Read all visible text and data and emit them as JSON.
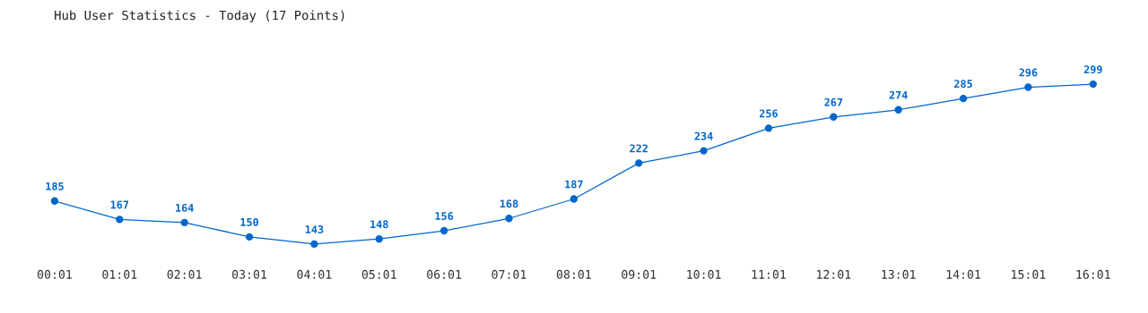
{
  "chart_data": {
    "type": "line",
    "title": "Hub User Statistics - Today (17 Points)",
    "categories": [
      "00:01",
      "01:01",
      "02:01",
      "03:01",
      "04:01",
      "05:01",
      "06:01",
      "07:01",
      "08:01",
      "09:01",
      "10:01",
      "11:01",
      "12:01",
      "13:01",
      "14:01",
      "15:01",
      "16:01"
    ],
    "series": [
      {
        "color": "#0066cc",
        "values": [
          185,
          167,
          164,
          150,
          143,
          148,
          156,
          168,
          187,
          222,
          234,
          256,
          267,
          274,
          285,
          296,
          299
        ]
      }
    ],
    "data_labels": true,
    "marker": "circle",
    "line_style": "solid",
    "grid": false,
    "legend": false,
    "tick_labels": "x"
  }
}
